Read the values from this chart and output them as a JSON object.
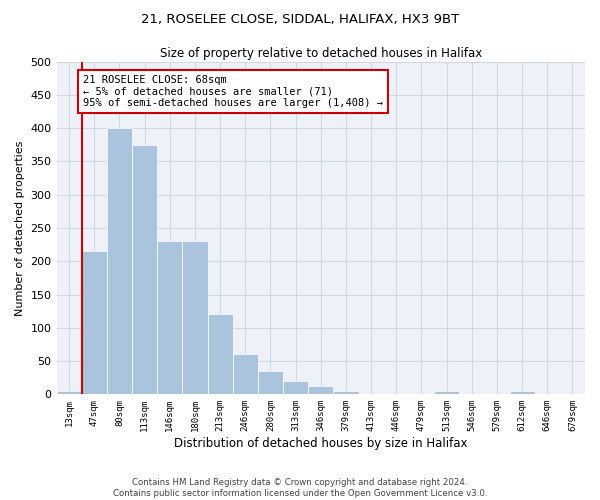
{
  "title1": "21, ROSELEE CLOSE, SIDDAL, HALIFAX, HX3 9BT",
  "title2": "Size of property relative to detached houses in Halifax",
  "xlabel": "Distribution of detached houses by size in Halifax",
  "ylabel": "Number of detached properties",
  "bar_labels": [
    "13sqm",
    "47sqm",
    "80sqm",
    "113sqm",
    "146sqm",
    "180sqm",
    "213sqm",
    "246sqm",
    "280sqm",
    "313sqm",
    "346sqm",
    "379sqm",
    "413sqm",
    "446sqm",
    "479sqm",
    "513sqm",
    "546sqm",
    "579sqm",
    "612sqm",
    "646sqm",
    "679sqm"
  ],
  "bar_values": [
    5,
    215,
    400,
    375,
    230,
    230,
    120,
    60,
    35,
    20,
    12,
    5,
    1,
    1,
    1,
    5,
    1,
    1,
    5,
    1,
    1
  ],
  "bar_color": "#aac4dd",
  "bar_edgecolor": "#aac4dd",
  "annotation_text": "21 ROSELEE CLOSE: 68sqm\n← 5% of detached houses are smaller (71)\n95% of semi-detached houses are larger (1,408) →",
  "annotation_box_color": "white",
  "annotation_box_edgecolor": "#cc0000",
  "red_line_color": "#cc0000",
  "grid_color": "#d0d8e8",
  "bg_color": "#eef2f8",
  "ylim": [
    0,
    500
  ],
  "yticks": [
    0,
    50,
    100,
    150,
    200,
    250,
    300,
    350,
    400,
    450,
    500
  ],
  "footer1": "Contains HM Land Registry data © Crown copyright and database right 2024.",
  "footer2": "Contains public sector information licensed under the Open Government Licence v3.0."
}
